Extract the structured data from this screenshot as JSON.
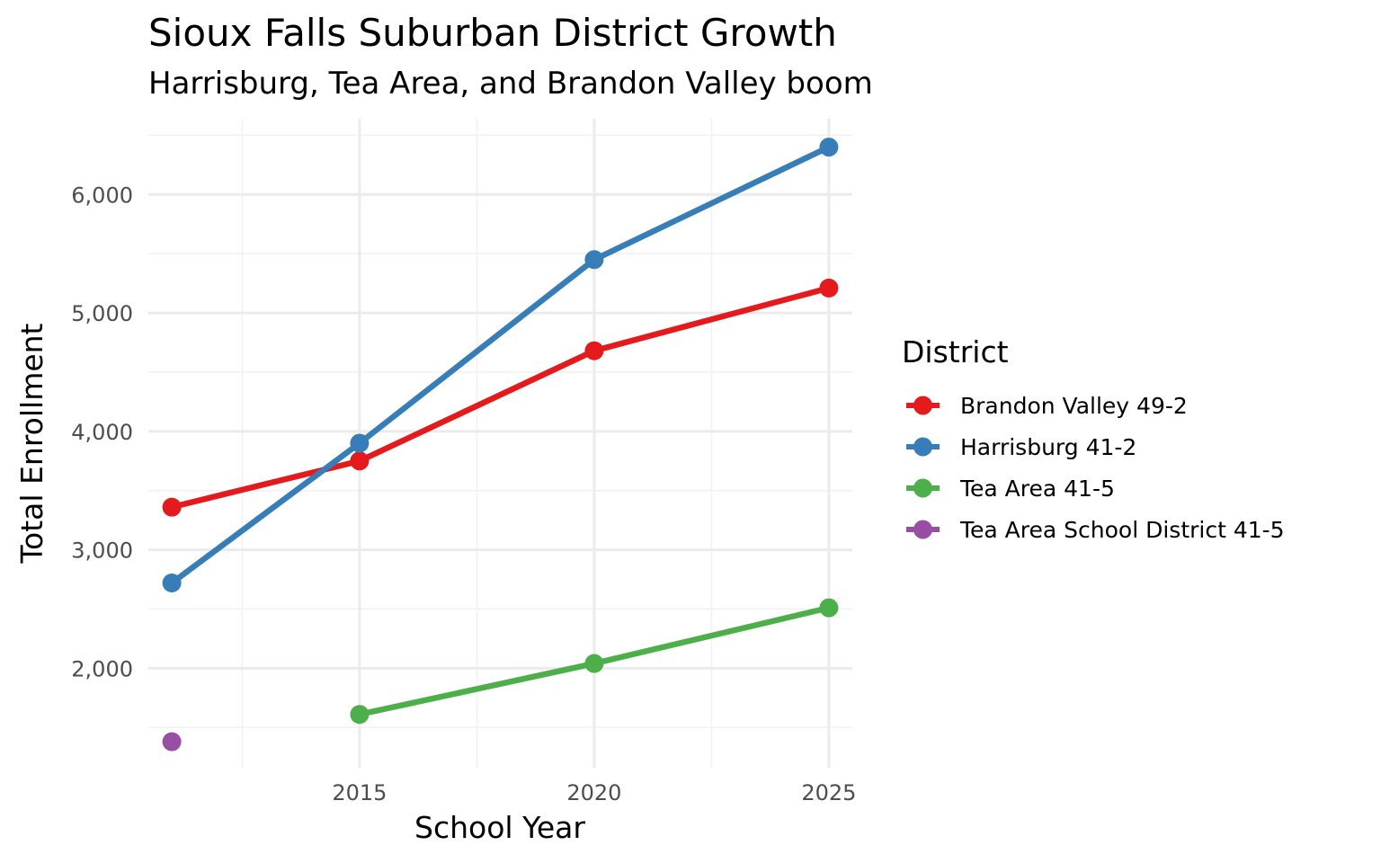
{
  "chart_data": {
    "type": "line",
    "title": "Sioux Falls Suburban District Growth",
    "subtitle": "Harrisburg, Tea Area, and Brandon Valley boom",
    "xlabel": "School Year",
    "ylabel": "Total Enrollment",
    "xlim": [
      2010.5,
      2025.5
    ],
    "ylim": [
      1160,
      6640
    ],
    "x_ticks": [
      {
        "value": 2015,
        "label": "2015"
      },
      {
        "value": 2020,
        "label": "2020"
      },
      {
        "value": 2025,
        "label": "2025"
      }
    ],
    "x_minor_ticks": [
      2012.5,
      2017.5,
      2022.5
    ],
    "y_ticks": [
      {
        "value": 2000,
        "label": "2,000"
      },
      {
        "value": 3000,
        "label": "3,000"
      },
      {
        "value": 4000,
        "label": "4,000"
      },
      {
        "value": 5000,
        "label": "5,000"
      },
      {
        "value": 6000,
        "label": "6,000"
      }
    ],
    "y_minor_ticks": [
      1500,
      2500,
      3500,
      4500,
      5500,
      6500
    ],
    "grid": true,
    "legend": {
      "title": "District",
      "position": "right"
    },
    "series": [
      {
        "name": "Brandon Valley 49-2",
        "color": "#e41a1c",
        "x": [
          2011,
          2015,
          2020,
          2025
        ],
        "y": [
          3360,
          3750,
          4680,
          5210
        ]
      },
      {
        "name": "Harrisburg 41-2",
        "color": "#377eb8",
        "x": [
          2011,
          2015,
          2020,
          2025
        ],
        "y": [
          2720,
          3900,
          5450,
          6400
        ]
      },
      {
        "name": "Tea Area 41-5",
        "color": "#4daf4a",
        "x": [
          2015,
          2020,
          2025
        ],
        "y": [
          1610,
          2040,
          2510
        ]
      },
      {
        "name": "Tea Area School District 41-5",
        "color": "#984ea3",
        "x": [
          2011
        ],
        "y": [
          1380
        ]
      }
    ]
  }
}
